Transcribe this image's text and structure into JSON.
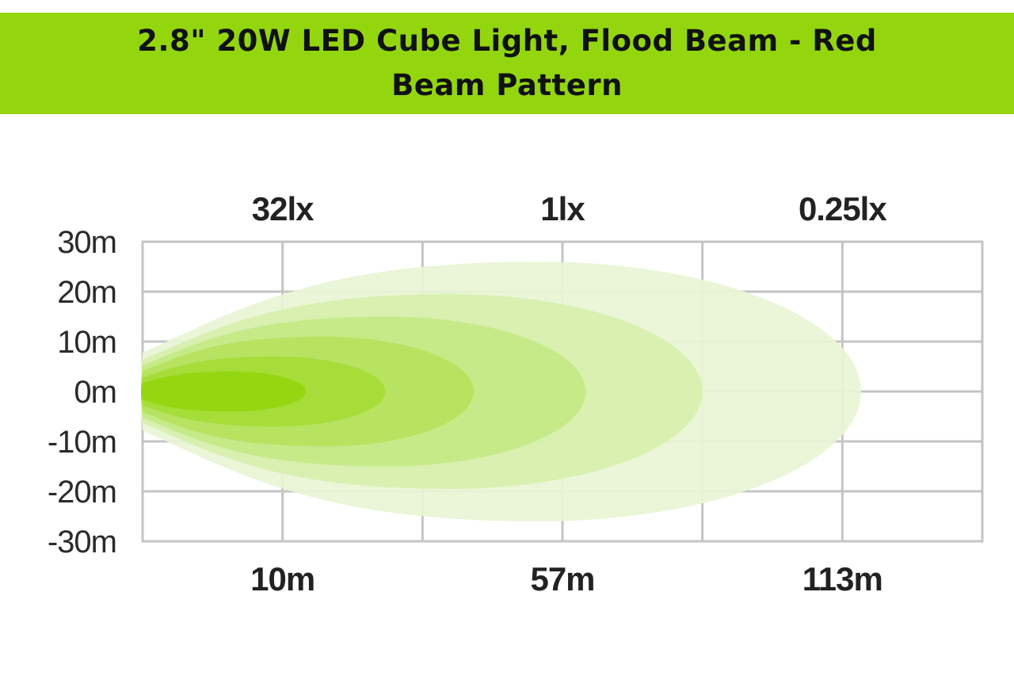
{
  "banner": {
    "line1": "2.8\" 20W LED Cube Light, Flood Beam - Red",
    "line2": "Beam Pattern"
  },
  "colors": {
    "banner": "#93d60e",
    "grid": "#c4c4c4",
    "beam_core": "#93d60e",
    "beam_outer": "#e8f5d4"
  },
  "chart_data": {
    "type": "area",
    "title": "Beam Pattern",
    "y_ticks": [
      "30m",
      "20m",
      "10m",
      "0m",
      "-10m",
      "-20m",
      "-30m"
    ],
    "ylim": [
      -30,
      30
    ],
    "xlim": [
      0,
      180
    ],
    "x_labels": [
      {
        "label": "10m",
        "x": 30
      },
      {
        "label": "57m",
        "x": 90
      },
      {
        "label": "113m",
        "x": 150
      }
    ],
    "lux_labels": [
      {
        "label": "32lx",
        "x": 30
      },
      {
        "label": "1lx",
        "x": 90
      },
      {
        "label": "0.25lx",
        "x": 150
      }
    ],
    "x_gridlines": [
      0,
      30,
      60,
      90,
      120,
      150,
      180
    ],
    "grid": true,
    "series": [
      {
        "reach": 154,
        "halfwidth": 26
      },
      {
        "reach": 120,
        "halfwidth": 19.5
      },
      {
        "reach": 95,
        "halfwidth": 15
      },
      {
        "reach": 71,
        "halfwidth": 11
      },
      {
        "reach": 52,
        "halfwidth": 7
      },
      {
        "reach": 35,
        "halfwidth": 4
      }
    ]
  }
}
